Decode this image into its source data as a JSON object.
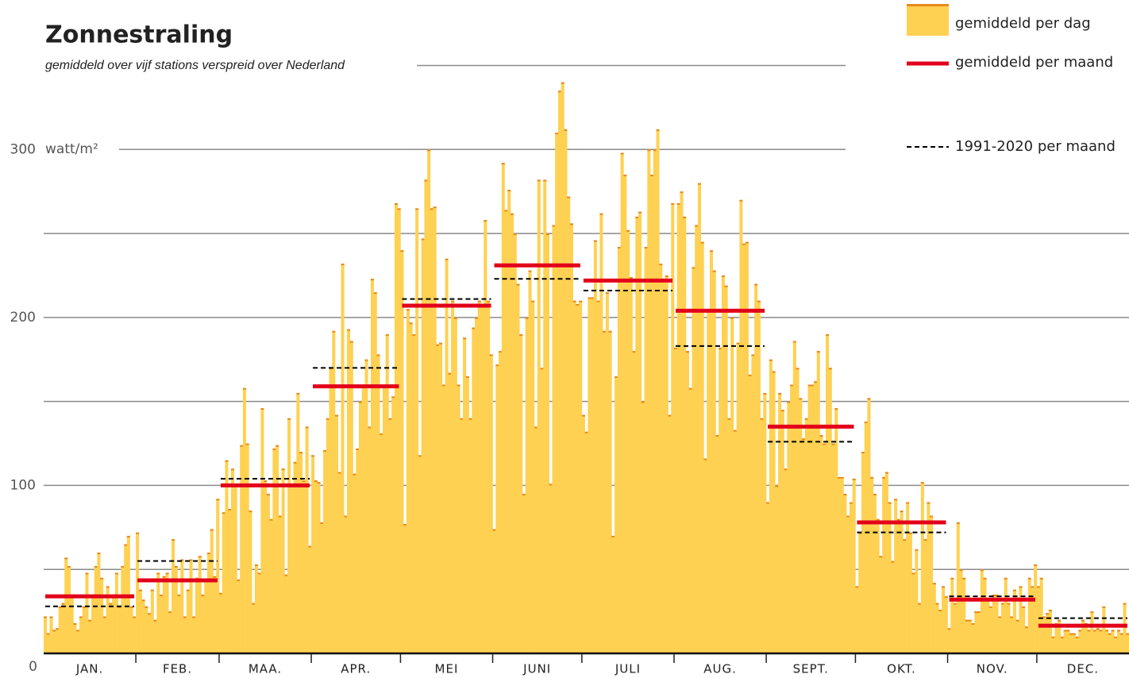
{
  "chart_data": {
    "type": "bar",
    "title": "Zonnestraling",
    "subtitle": "gemiddeld over vijf stations verspreid over Nederland",
    "y_unit": "watt/m²",
    "ylim": [
      0,
      389
    ],
    "yticks": [
      0,
      100,
      200,
      300
    ],
    "minor_yticks": [
      50,
      150,
      250,
      350
    ],
    "grid": true,
    "legend": "top-right",
    "series": [
      {
        "name": "gemiddeld per dag",
        "color": "#ffd152",
        "edge_color": "#e8891c"
      },
      {
        "name": "gemiddeld per maand",
        "color": "#e2001a"
      },
      {
        "name": "1991-2020 per maand",
        "color": "#000000"
      }
    ],
    "months": [
      {
        "name": "JAN.",
        "mean": 34,
        "normal": 28,
        "days": [
          22,
          12,
          22,
          14,
          15,
          28,
          30,
          57,
          52,
          35,
          18,
          14,
          22,
          28,
          48,
          20,
          35,
          52,
          60,
          45,
          22,
          40,
          30,
          35,
          48,
          28,
          52,
          65,
          70,
          28,
          22
        ]
      },
      {
        "name": "FEB.",
        "mean": 43.5,
        "normal": 55,
        "days": [
          72,
          38,
          32,
          28,
          24,
          38,
          20,
          48,
          35,
          46,
          48,
          25,
          68,
          52,
          35,
          56,
          22,
          38,
          56,
          22,
          45,
          58,
          35,
          44,
          60,
          74,
          46,
          92
        ]
      },
      {
        "name": "MAA.",
        "mean": 100,
        "normal": 104,
        "days": [
          36,
          84,
          115,
          86,
          110,
          100,
          44,
          124,
          158,
          125,
          85,
          30,
          53,
          48,
          146,
          103,
          95,
          80,
          122,
          124,
          82,
          110,
          47,
          140,
          100,
          114,
          155,
          120,
          103,
          135,
          64
        ]
      },
      {
        "name": "APR.",
        "mean": 159,
        "normal": 170,
        "days": [
          118,
          103,
          102,
          78,
          121,
          140,
          170,
          192,
          142,
          108,
          232,
          82,
          193,
          186,
          107,
          122,
          150,
          160,
          175,
          135,
          223,
          215,
          178,
          131,
          160,
          190,
          140,
          153,
          268,
          265
        ]
      },
      {
        "name": "MEI",
        "mean": 207,
        "normal": 211,
        "days": [
          240,
          77,
          205,
          197,
          190,
          265,
          118,
          247,
          282,
          300,
          265,
          266,
          184,
          185,
          160,
          235,
          167,
          210,
          200,
          160,
          140,
          188,
          165,
          140,
          194,
          200,
          210,
          208,
          258,
          210,
          178
        ]
      },
      {
        "name": "JUNI",
        "mean": 231,
        "normal": 223,
        "days": [
          74,
          172,
          180,
          292,
          264,
          276,
          262,
          250,
          220,
          190,
          95,
          200,
          228,
          210,
          135,
          282,
          170,
          282,
          250,
          101,
          255,
          310,
          335,
          340,
          312,
          272,
          256,
          210,
          208,
          210
        ]
      },
      {
        "name": "JULI",
        "mean": 222,
        "normal": 216,
        "days": [
          142,
          132,
          212,
          212,
          246,
          210,
          262,
          192,
          215,
          192,
          70,
          165,
          242,
          298,
          285,
          252,
          224,
          180,
          260,
          263,
          150,
          242,
          300,
          285,
          300,
          312,
          232,
          222,
          225,
          142,
          268
        ]
      },
      {
        "name": "AUG.",
        "mean": 204,
        "normal": 183,
        "days": [
          182,
          268,
          275,
          260,
          180,
          158,
          230,
          255,
          280,
          245,
          116,
          205,
          240,
          228,
          130,
          182,
          225,
          219,
          140,
          200,
          133,
          185,
          270,
          244,
          245,
          166,
          178,
          220,
          210,
          140,
          155
        ]
      },
      {
        "name": "SEPT.",
        "mean": 135,
        "normal": 126,
        "days": [
          90,
          175,
          168,
          100,
          155,
          145,
          110,
          150,
          160,
          186,
          170,
          152,
          128,
          140,
          160,
          160,
          162,
          180,
          130,
          125,
          190,
          170,
          125,
          146,
          105,
          105,
          95,
          82,
          90,
          104
        ]
      },
      {
        "name": "OKT.",
        "mean": 78,
        "normal": 72,
        "days": [
          40,
          72,
          120,
          138,
          152,
          105,
          95,
          80,
          58,
          105,
          108,
          90,
          55,
          92,
          80,
          85,
          68,
          90,
          72,
          48,
          62,
          30,
          102,
          68,
          90,
          82,
          42,
          30,
          26,
          40,
          34
        ]
      },
      {
        "name": "NOV.",
        "mean": 32,
        "normal": 34,
        "days": [
          15,
          45,
          30,
          78,
          50,
          45,
          20,
          20,
          18,
          25,
          25,
          50,
          45,
          32,
          28,
          35,
          35,
          22,
          30,
          45,
          30,
          22,
          38,
          20,
          40,
          28,
          16,
          45,
          40,
          53
        ]
      },
      {
        "name": "DEC.",
        "mean": 16.5,
        "normal": 21,
        "days": [
          40,
          45,
          22,
          24,
          26,
          10,
          18,
          20,
          10,
          14,
          14,
          12,
          12,
          10,
          14,
          20,
          18,
          14,
          25,
          14,
          15,
          14,
          28,
          14,
          12,
          14,
          10,
          14,
          12,
          30,
          12
        ]
      }
    ]
  }
}
